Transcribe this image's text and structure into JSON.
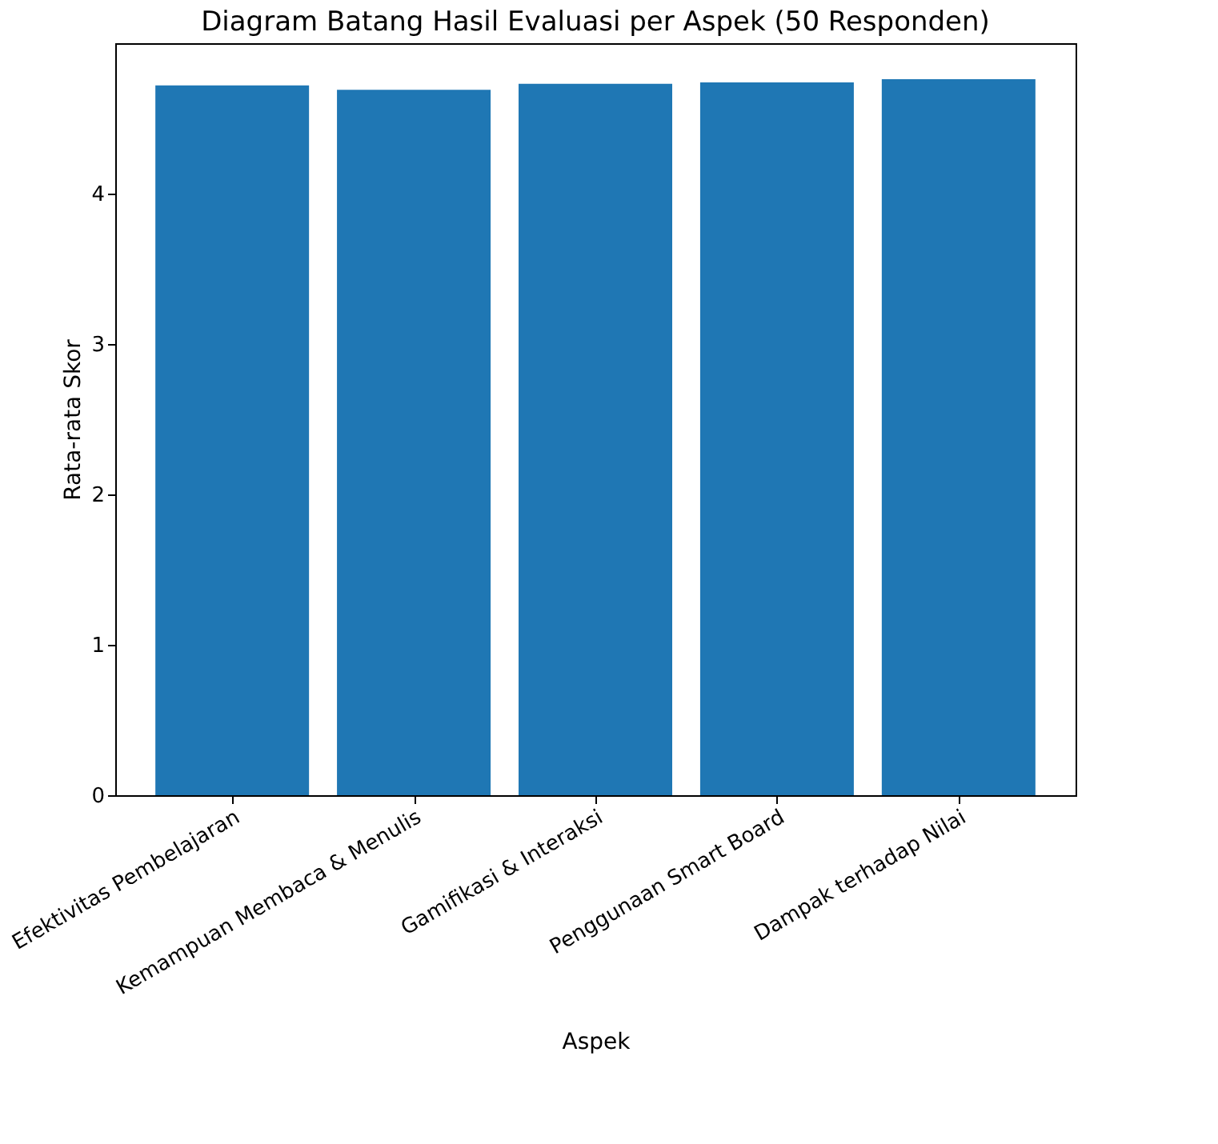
{
  "chart_data": {
    "type": "bar",
    "title": "Diagram Batang Hasil Evaluasi per Aspek (50 Responden)",
    "xlabel": "Aspek",
    "ylabel": "Rata-rata Skor",
    "categories": [
      "Efektivitas Pembelajaran",
      "Kemampuan Membaca & Menulis",
      "Gamifikasi & Interaksi",
      "Penggunaan Smart Board",
      "Dampak terhadap Nilai"
    ],
    "values": [
      4.72,
      4.69,
      4.73,
      4.74,
      4.76
    ],
    "color": "#1f77b4",
    "ylim": [
      0,
      5
    ],
    "yticks": [
      0,
      1,
      2,
      3,
      4
    ],
    "grid": false
  }
}
